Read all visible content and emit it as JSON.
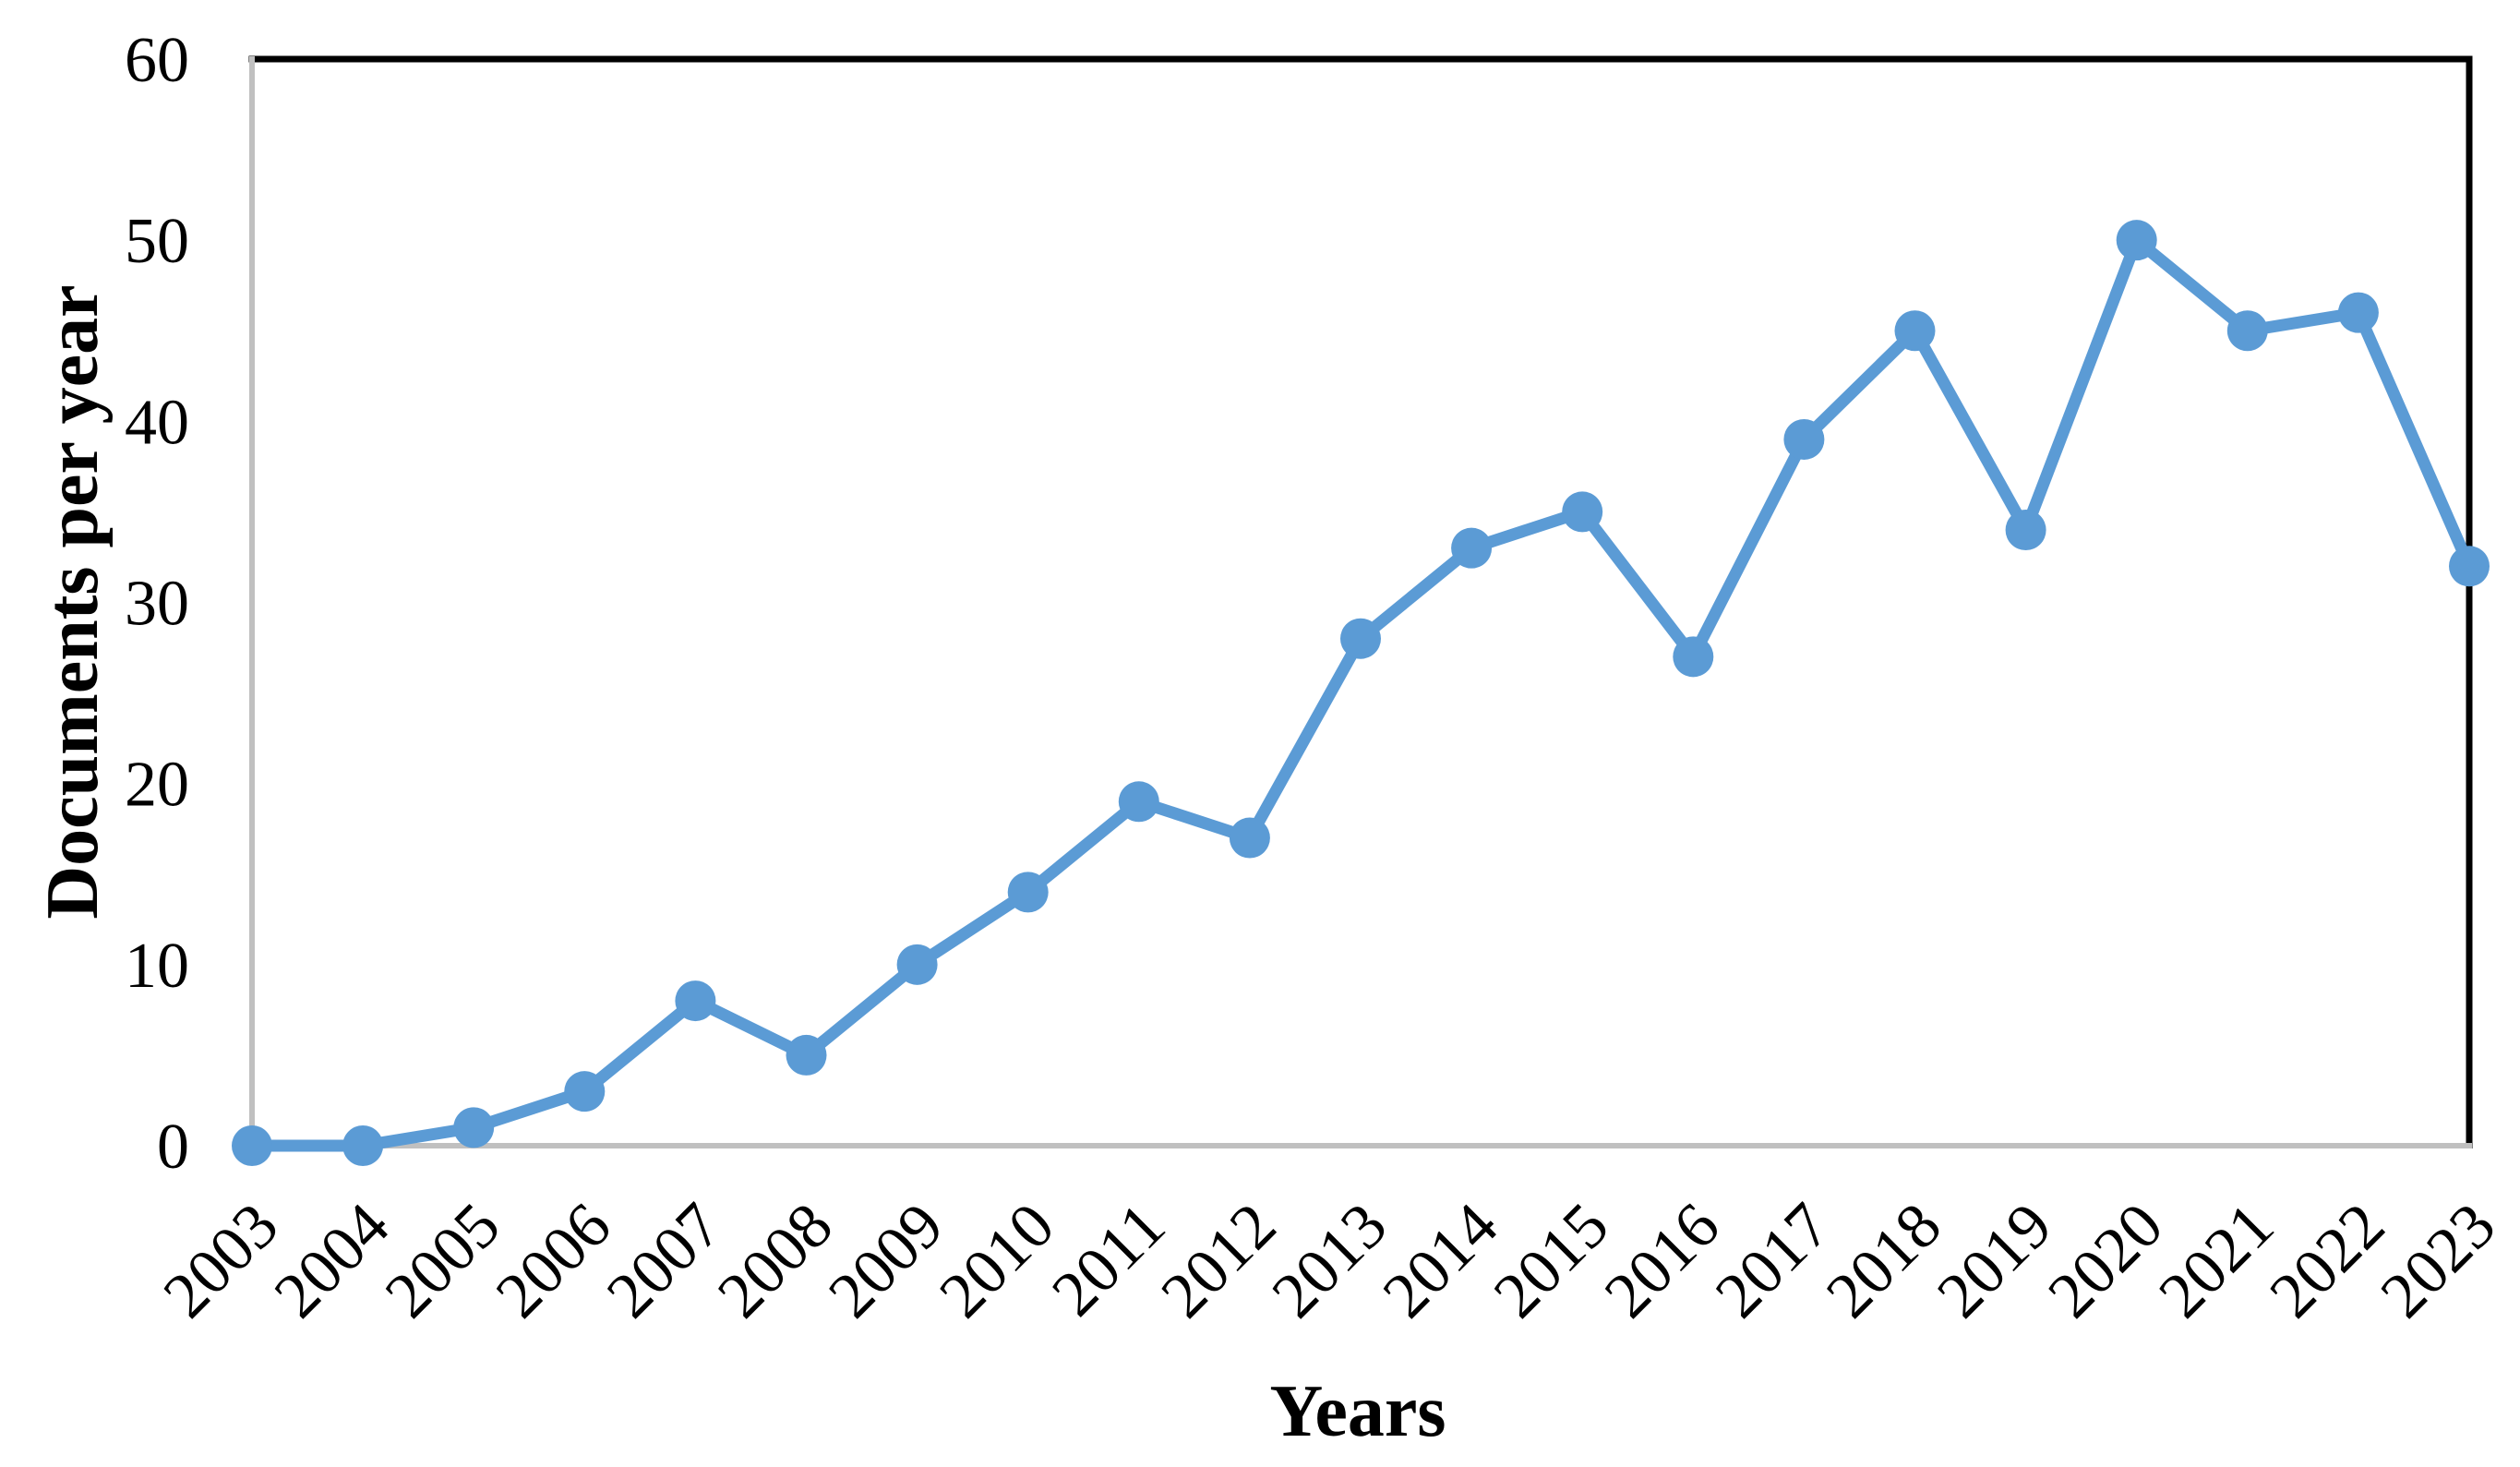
{
  "figure": {
    "background": "#ffffff"
  },
  "chart_data": {
    "type": "line",
    "title": "",
    "xlabel": "Years",
    "ylabel": "Documents per year",
    "categories": [
      "2003",
      "2004",
      "2005",
      "2006",
      "2007",
      "2008",
      "2009",
      "2010",
      "2011",
      "2012",
      "2013",
      "2014",
      "2015",
      "2016",
      "2017",
      "2018",
      "2019",
      "2020",
      "2021",
      "2022",
      "2023"
    ],
    "series": [
      {
        "name": "Documents per year",
        "values": [
          0,
          0,
          1,
          3,
          8,
          5,
          10,
          14,
          19,
          17,
          28,
          33,
          35,
          27,
          39,
          45,
          34,
          50,
          45,
          46,
          32
        ]
      }
    ],
    "ylim": [
      0,
      60
    ],
    "yticks": [
      0,
      10,
      20,
      30,
      40,
      50,
      60
    ],
    "x_tick_rotation_deg": -45,
    "grid": false,
    "legend": "none",
    "line_color": "#5B9BD5",
    "marker": "circle",
    "axis_line_color": "#C0C0C0",
    "plot_border_color": "#000000",
    "text_color": "#000000"
  }
}
